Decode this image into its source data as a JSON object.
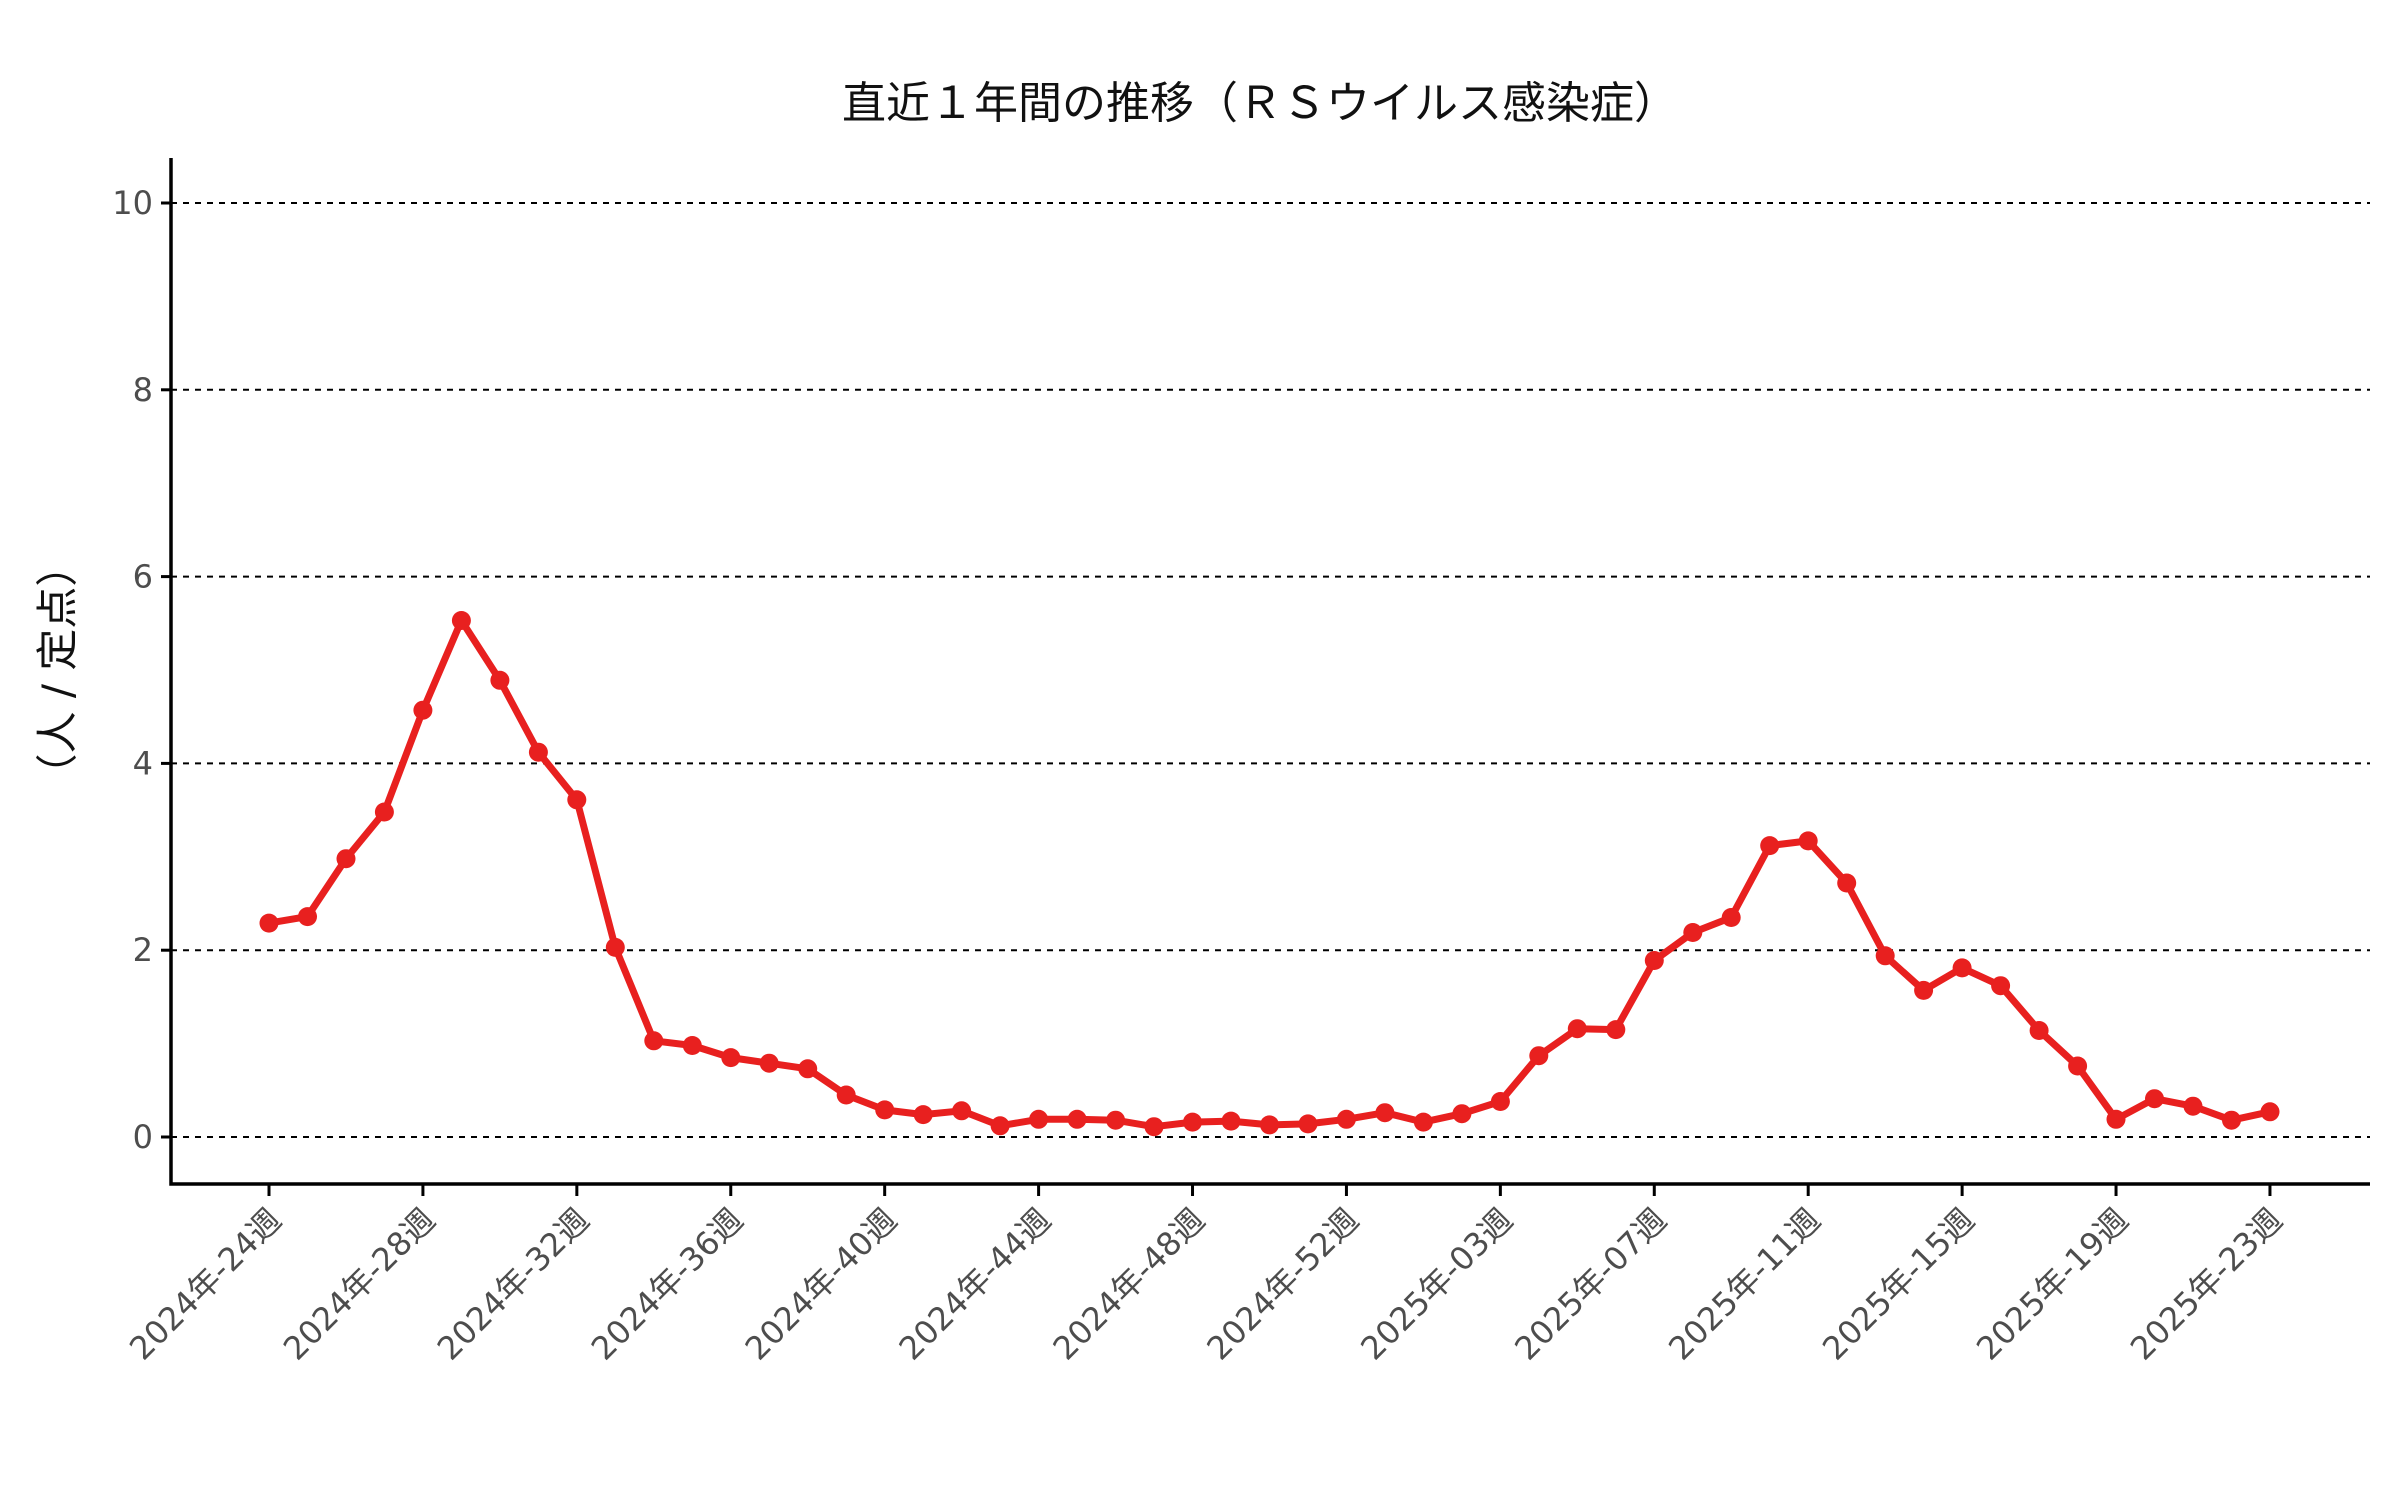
{
  "chart_data": {
    "type": "line",
    "title": "直近１年間の推移（ＲＳウイルス感染症）",
    "ylabel": "（人 / 定点）",
    "xlabel": "",
    "ylim": [
      -0.5,
      10.5
    ],
    "yticks": [
      0,
      2,
      4,
      6,
      8,
      10
    ],
    "grid": "horizontal dashed",
    "line_color": "#e8201f",
    "tick_labels": [
      "2024年-24週",
      "2024年-28週",
      "2024年-32週",
      "2024年-36週",
      "2024年-40週",
      "2024年-44週",
      "2024年-48週",
      "2024年-52週",
      "2025年-03週",
      "2025年-07週",
      "2025年-11週",
      "2025年-15週",
      "2025年-19週",
      "2025年-23週"
    ],
    "series": [
      {
        "values": [
          2.29,
          2.36,
          2.98,
          3.48,
          4.57,
          5.53,
          4.89,
          4.12,
          3.61,
          2.03,
          1.03,
          0.98,
          0.85,
          0.79,
          0.73,
          0.45,
          0.29,
          0.24,
          0.28,
          0.12,
          0.19,
          0.19,
          0.18,
          0.11,
          0.16,
          0.17,
          0.13,
          0.14,
          0.19,
          0.26,
          0.16,
          0.25,
          0.38,
          0.87,
          1.16,
          1.15,
          1.89,
          2.19,
          2.35,
          3.12,
          3.17,
          2.72,
          1.94,
          1.57,
          1.81,
          1.62,
          1.14,
          0.76,
          0.19,
          0.41,
          0.33,
          0.18,
          0.27
        ]
      }
    ]
  }
}
